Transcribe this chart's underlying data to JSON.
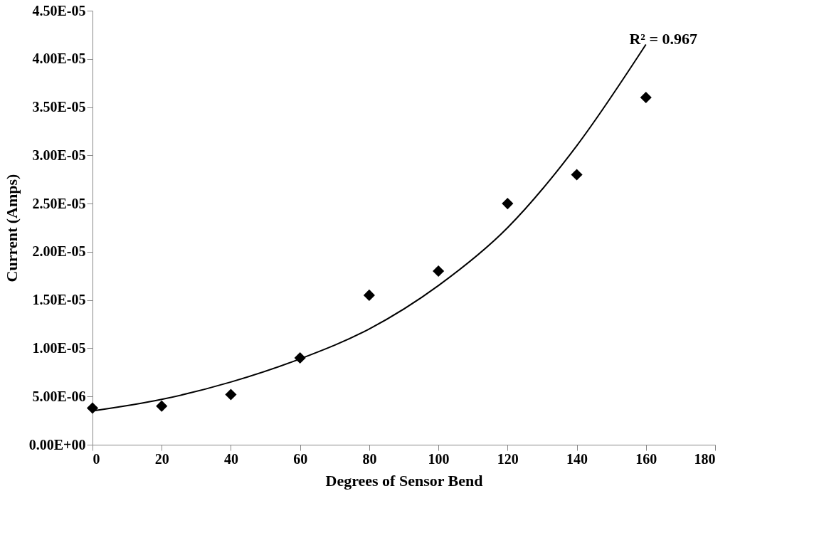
{
  "chart_data": {
    "type": "scatter",
    "xlabel": "Degrees of Sensor Bend",
    "ylabel": "Current (Amps)",
    "x": [
      0,
      20,
      40,
      60,
      80,
      100,
      120,
      140,
      160
    ],
    "series": [
      {
        "color": "#000000",
        "marker": "diamond",
        "values": [
          3.8e-06,
          4e-06,
          5.2e-06,
          9e-06,
          1.55e-05,
          1.8e-05,
          2.5e-05,
          2.8e-05,
          3.6e-05
        ]
      },
      {
        "type": "line",
        "color": "#000000",
        "marker": "none",
        "x": [
          0,
          20,
          40,
          60,
          80,
          100,
          120,
          140,
          160
        ],
        "values": [
          3.5e-06,
          4.7e-06,
          6.5e-06,
          8.9e-06,
          1.2e-05,
          1.65e-05,
          2.25e-05,
          3.1e-05,
          4.15e-05
        ]
      }
    ],
    "annotations": [
      "R² = 0.967"
    ],
    "xlim": [
      0,
      180
    ],
    "xticks": [
      0,
      20,
      40,
      60,
      80,
      100,
      120,
      140,
      160,
      180
    ],
    "ylim": [
      0,
      4.5e-05
    ],
    "yticks": [
      {
        "value": 0,
        "label": "0.00E+00"
      },
      {
        "value": 5e-06,
        "label": "5.00E-06"
      },
      {
        "value": 1e-05,
        "label": "1.00E-05"
      },
      {
        "value": 1.5e-05,
        "label": "1.50E-05"
      },
      {
        "value": 2e-05,
        "label": "2.00E-05"
      },
      {
        "value": 2.5e-05,
        "label": "2.50E-05"
      },
      {
        "value": 3e-05,
        "label": "3.00E-05"
      },
      {
        "value": 3.5e-05,
        "label": "3.50E-05"
      },
      {
        "value": 4e-05,
        "label": "4.00E-05"
      },
      {
        "value": 4.5e-05,
        "label": "4.50E-05"
      }
    ],
    "grid": false
  }
}
